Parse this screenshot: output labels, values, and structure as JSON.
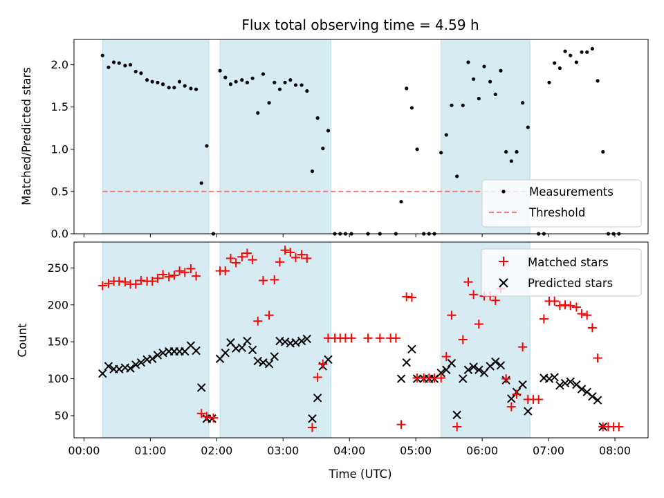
{
  "chart_data": [
    {
      "type": "scatter",
      "title": "Flux total observing time = 4.59 h",
      "xlabel": "",
      "ylabel": "Matched/Predicted stars",
      "xlim": [
        -0.15,
        8.5
      ],
      "ylim": [
        0,
        2.3
      ],
      "yticks": [
        0.0,
        0.5,
        1.0,
        1.5,
        2.0
      ],
      "ytick_labels": [
        "0.0",
        "0.5",
        "1.0",
        "1.5",
        "2.0"
      ],
      "grid": false,
      "legend_position": "lower-right",
      "shaded_spans": [
        [
          0.28,
          1.88
        ],
        [
          2.05,
          3.72
        ],
        [
          5.38,
          6.72
        ]
      ],
      "threshold": {
        "name": "Threshold",
        "y": 0.5,
        "x": [
          0.28,
          6.85
        ],
        "color": "#f47a7a"
      },
      "series": [
        {
          "name": "Measurements",
          "color": "#000000",
          "marker": "dot",
          "points": [
            [
              0.28,
              2.11
            ],
            [
              0.37,
              1.97
            ],
            [
              0.45,
              2.03
            ],
            [
              0.53,
              2.02
            ],
            [
              0.62,
              1.99
            ],
            [
              0.7,
              2.0
            ],
            [
              0.78,
              1.92
            ],
            [
              0.86,
              1.9
            ],
            [
              0.95,
              1.82
            ],
            [
              1.03,
              1.8
            ],
            [
              1.11,
              1.79
            ],
            [
              1.19,
              1.77
            ],
            [
              1.28,
              1.73
            ],
            [
              1.36,
              1.73
            ],
            [
              1.44,
              1.8
            ],
            [
              1.52,
              1.75
            ],
            [
              1.61,
              1.72
            ],
            [
              1.69,
              1.71
            ],
            [
              1.77,
              0.6
            ],
            [
              1.85,
              1.04
            ],
            [
              1.95,
              0.0
            ],
            [
              2.05,
              1.93
            ],
            [
              2.13,
              1.85
            ],
            [
              2.21,
              1.77
            ],
            [
              2.29,
              1.8
            ],
            [
              2.38,
              1.82
            ],
            [
              2.46,
              1.79
            ],
            [
              2.54,
              1.84
            ],
            [
              2.62,
              1.43
            ],
            [
              2.7,
              1.89
            ],
            [
              2.79,
              1.55
            ],
            [
              2.87,
              1.79
            ],
            [
              2.95,
              1.71
            ],
            [
              3.03,
              1.79
            ],
            [
              3.11,
              1.82
            ],
            [
              3.19,
              1.76
            ],
            [
              3.28,
              1.76
            ],
            [
              3.36,
              1.69
            ],
            [
              3.44,
              0.74
            ],
            [
              3.52,
              1.37
            ],
            [
              3.6,
              1.01
            ],
            [
              3.68,
              1.22
            ],
            [
              3.78,
              0.0
            ],
            [
              3.86,
              0.0
            ],
            [
              3.94,
              0.0
            ],
            [
              4.03,
              0.0
            ],
            [
              4.28,
              0.0
            ],
            [
              4.46,
              0.0
            ],
            [
              4.7,
              0.0
            ],
            [
              4.78,
              0.38
            ],
            [
              4.86,
              1.72
            ],
            [
              4.94,
              1.49
            ],
            [
              5.02,
              1.0
            ],
            [
              5.12,
              0.0
            ],
            [
              5.2,
              0.0
            ],
            [
              5.28,
              0.0
            ],
            [
              5.38,
              0.96
            ],
            [
              5.46,
              1.17
            ],
            [
              5.54,
              1.52
            ],
            [
              5.62,
              0.68
            ],
            [
              5.71,
              1.52
            ],
            [
              5.79,
              2.03
            ],
            [
              5.87,
              1.83
            ],
            [
              5.95,
              1.6
            ],
            [
              6.03,
              1.98
            ],
            [
              6.12,
              1.8
            ],
            [
              6.2,
              1.65
            ],
            [
              6.28,
              1.93
            ],
            [
              6.36,
              0.97
            ],
            [
              6.44,
              0.86
            ],
            [
              6.52,
              0.97
            ],
            [
              6.61,
              1.55
            ],
            [
              6.69,
              1.26
            ],
            [
              6.85,
              0.0
            ],
            [
              6.93,
              0.0
            ],
            [
              7.01,
              1.79
            ],
            [
              7.09,
              2.02
            ],
            [
              7.17,
              1.96
            ],
            [
              7.25,
              2.16
            ],
            [
              7.33,
              2.11
            ],
            [
              7.42,
              2.03
            ],
            [
              7.5,
              2.15
            ],
            [
              7.58,
              2.15
            ],
            [
              7.66,
              2.19
            ],
            [
              7.74,
              1.81
            ],
            [
              7.82,
              0.97
            ],
            [
              7.9,
              0.0
            ],
            [
              7.98,
              0.0
            ],
            [
              8.06,
              0.0
            ]
          ]
        }
      ]
    },
    {
      "type": "scatter",
      "title": "",
      "xlabel": "Time (UTC)",
      "ylabel": "Count",
      "xlim": [
        -0.15,
        8.5
      ],
      "ylim": [
        20,
        285
      ],
      "yticks": [
        50,
        100,
        150,
        200,
        250
      ],
      "ytick_labels": [
        "50",
        "100",
        "150",
        "200",
        "250"
      ],
      "xticks": [
        0,
        1,
        2,
        3,
        4,
        5,
        6,
        7,
        8
      ],
      "xtick_labels": [
        "00:00",
        "01:00",
        "02:00",
        "03:00",
        "04:00",
        "05:00",
        "06:00",
        "07:00",
        "08:00"
      ],
      "grid": false,
      "legend_position": "upper-right",
      "shaded_spans": [
        [
          0.28,
          1.88
        ],
        [
          2.05,
          3.72
        ],
        [
          5.38,
          6.72
        ]
      ],
      "series": [
        {
          "name": "Matched stars",
          "color": "#ff0000",
          "marker": "plus",
          "points": [
            [
              0.28,
              226
            ],
            [
              0.37,
              229
            ],
            [
              0.45,
              232
            ],
            [
              0.53,
              232
            ],
            [
              0.62,
              231
            ],
            [
              0.7,
              228
            ],
            [
              0.78,
              228
            ],
            [
              0.86,
              233
            ],
            [
              0.95,
              232
            ],
            [
              1.03,
              232
            ],
            [
              1.11,
              236
            ],
            [
              1.19,
              241
            ],
            [
              1.28,
              238
            ],
            [
              1.36,
              240
            ],
            [
              1.44,
              246
            ],
            [
              1.52,
              244
            ],
            [
              1.61,
              249
            ],
            [
              1.69,
              239
            ],
            [
              1.77,
              53
            ],
            [
              1.85,
              49
            ],
            [
              1.95,
              47
            ],
            [
              2.05,
              246
            ],
            [
              2.13,
              246
            ],
            [
              2.21,
              263
            ],
            [
              2.29,
              257
            ],
            [
              2.38,
              265
            ],
            [
              2.46,
              270
            ],
            [
              2.54,
              261
            ],
            [
              2.62,
              178
            ],
            [
              2.7,
              233
            ],
            [
              2.79,
              186
            ],
            [
              2.87,
              234
            ],
            [
              2.95,
              258
            ],
            [
              3.03,
              274
            ],
            [
              3.11,
              271
            ],
            [
              3.19,
              264
            ],
            [
              3.28,
              268
            ],
            [
              3.36,
              263
            ],
            [
              3.44,
              34
            ],
            [
              3.52,
              102
            ],
            [
              3.6,
              120
            ],
            [
              3.68,
              155
            ],
            [
              3.78,
              155
            ],
            [
              3.86,
              155
            ],
            [
              3.94,
              155
            ],
            [
              4.03,
              155
            ],
            [
              4.28,
              155
            ],
            [
              4.46,
              155
            ],
            [
              4.62,
              155
            ],
            [
              4.7,
              155
            ],
            [
              4.78,
              38
            ],
            [
              4.86,
              211
            ],
            [
              4.94,
              210
            ],
            [
              5.02,
              101
            ],
            [
              5.12,
              101
            ],
            [
              5.2,
              101
            ],
            [
              5.28,
              101
            ],
            [
              5.38,
              101
            ],
            [
              5.46,
              130
            ],
            [
              5.54,
              186
            ],
            [
              5.62,
              35
            ],
            [
              5.71,
              153
            ],
            [
              5.79,
              231
            ],
            [
              5.87,
              214
            ],
            [
              5.95,
              174
            ],
            [
              6.03,
              212
            ],
            [
              6.12,
              212
            ],
            [
              6.2,
              206
            ],
            [
              6.28,
              222
            ],
            [
              6.36,
              100
            ],
            [
              6.44,
              62
            ],
            [
              6.52,
              79
            ],
            [
              6.61,
              143
            ],
            [
              6.69,
              72
            ],
            [
              6.77,
              72
            ],
            [
              6.85,
              72
            ],
            [
              6.93,
              181
            ],
            [
              7.01,
              205
            ],
            [
              7.09,
              205
            ],
            [
              7.17,
              199
            ],
            [
              7.25,
              200
            ],
            [
              7.33,
              199
            ],
            [
              7.42,
              197
            ],
            [
              7.5,
              188
            ],
            [
              7.58,
              186
            ],
            [
              7.66,
              169
            ],
            [
              7.74,
              128
            ],
            [
              7.82,
              35
            ],
            [
              7.9,
              35
            ],
            [
              7.98,
              35
            ],
            [
              8.06,
              35
            ]
          ]
        },
        {
          "name": "Predicted stars",
          "color": "#000000",
          "marker": "x",
          "points": [
            [
              0.28,
              107
            ],
            [
              0.37,
              117
            ],
            [
              0.45,
              113
            ],
            [
              0.53,
              113
            ],
            [
              0.62,
              115
            ],
            [
              0.7,
              114
            ],
            [
              0.78,
              119
            ],
            [
              0.86,
              122
            ],
            [
              0.95,
              126
            ],
            [
              1.03,
              127
            ],
            [
              1.11,
              132
            ],
            [
              1.19,
              135
            ],
            [
              1.28,
              137
            ],
            [
              1.36,
              137
            ],
            [
              1.44,
              137
            ],
            [
              1.52,
              137
            ],
            [
              1.61,
              145
            ],
            [
              1.69,
              138
            ],
            [
              1.77,
              88
            ],
            [
              1.85,
              46
            ],
            [
              1.93,
              46
            ],
            [
              2.05,
              127
            ],
            [
              2.13,
              135
            ],
            [
              2.21,
              149
            ],
            [
              2.29,
              141
            ],
            [
              2.38,
              142
            ],
            [
              2.46,
              151
            ],
            [
              2.54,
              139
            ],
            [
              2.62,
              124
            ],
            [
              2.7,
              122
            ],
            [
              2.79,
              120
            ],
            [
              2.87,
              130
            ],
            [
              2.95,
              151
            ],
            [
              3.03,
              150
            ],
            [
              3.11,
              148
            ],
            [
              3.19,
              149
            ],
            [
              3.28,
              151
            ],
            [
              3.36,
              154
            ],
            [
              3.44,
              46
            ],
            [
              3.52,
              74
            ],
            [
              3.6,
              117
            ],
            [
              3.68,
              126
            ],
            [
              4.78,
              100
            ],
            [
              4.86,
              122
            ],
            [
              4.94,
              140
            ],
            [
              5.02,
              100
            ],
            [
              5.12,
              100
            ],
            [
              5.2,
              100
            ],
            [
              5.28,
              100
            ],
            [
              5.38,
              108
            ],
            [
              5.46,
              112
            ],
            [
              5.54,
              121
            ],
            [
              5.62,
              51
            ],
            [
              5.71,
              100
            ],
            [
              5.79,
              112
            ],
            [
              5.87,
              116
            ],
            [
              5.95,
              112
            ],
            [
              6.03,
              108
            ],
            [
              6.12,
              117
            ],
            [
              6.2,
              123
            ],
            [
              6.28,
              118
            ],
            [
              6.36,
              98
            ],
            [
              6.44,
              73
            ],
            [
              6.52,
              82
            ],
            [
              6.61,
              92
            ],
            [
              6.69,
              56
            ],
            [
              6.93,
              101
            ],
            [
              7.01,
              100
            ],
            [
              7.09,
              102
            ],
            [
              7.17,
              91
            ],
            [
              7.25,
              94
            ],
            [
              7.33,
              96
            ],
            [
              7.42,
              92
            ],
            [
              7.5,
              86
            ],
            [
              7.58,
              82
            ],
            [
              7.66,
              76
            ],
            [
              7.74,
              71
            ],
            [
              7.82,
              35
            ]
          ]
        }
      ]
    }
  ]
}
